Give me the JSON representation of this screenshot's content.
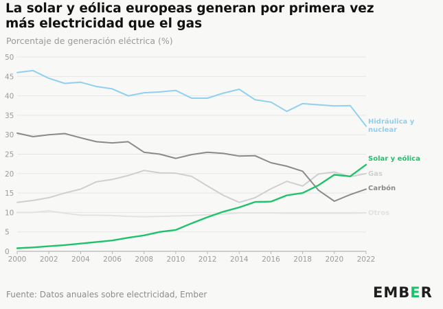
{
  "title": {
    "line1": "La solar y eólica europeas generan por primera vez",
    "line2": "más electricidad que el gas"
  },
  "subtitle": "Porcentaje de generación eléctrica (%)",
  "source": "Fuente: Datos anuales sobre electricidad, Ember",
  "logo": {
    "text": "EMBER",
    "letters": [
      "E",
      "M",
      "B",
      "E",
      "R"
    ],
    "accent_color": "#1ec26a"
  },
  "chart_data": {
    "type": "line",
    "title": "La solar y eólica europeas generan por primera vez más electricidad que el gas",
    "ylabel": "Porcentaje de generación eléctrica (%)",
    "xlabel": "",
    "x": [
      2000,
      2001,
      2002,
      2003,
      2004,
      2005,
      2006,
      2007,
      2008,
      2009,
      2010,
      2011,
      2012,
      2013,
      2014,
      2015,
      2016,
      2017,
      2018,
      2019,
      2020,
      2021,
      2022
    ],
    "xlim": [
      2000,
      2022
    ],
    "ylim": [
      0,
      50
    ],
    "yticks": [
      0,
      5,
      10,
      15,
      20,
      25,
      30,
      35,
      40,
      45,
      50
    ],
    "xticks": [
      2000,
      2002,
      2004,
      2006,
      2008,
      2010,
      2012,
      2014,
      2016,
      2018,
      2020,
      2022
    ],
    "grid": true,
    "series": [
      {
        "name": "Hidráulica y nuclear",
        "label_lines": [
          "Hidráulica y",
          "nuclear"
        ],
        "color": "#8fd0f0",
        "values": [
          46.0,
          46.5,
          44.5,
          43.2,
          43.5,
          42.4,
          41.8,
          40.0,
          40.8,
          41.0,
          41.4,
          39.4,
          39.4,
          40.7,
          41.7,
          39.0,
          38.4,
          36.0,
          38.0,
          37.7,
          37.4,
          37.5,
          32.2
        ]
      },
      {
        "name": "Solar y eólica",
        "label_lines": [
          "Solar y eólica"
        ],
        "color": "#1ec26a",
        "values": [
          0.8,
          1.0,
          1.3,
          1.6,
          2.0,
          2.4,
          2.8,
          3.5,
          4.1,
          5.0,
          5.5,
          7.2,
          8.8,
          10.2,
          11.3,
          12.7,
          12.8,
          14.4,
          15.0,
          17.0,
          19.7,
          19.3,
          22.3
        ]
      },
      {
        "name": "Gas",
        "label_lines": [
          "Gas"
        ],
        "color": "#cfcfcf",
        "values": [
          12.6,
          13.1,
          13.8,
          15.0,
          16.0,
          17.9,
          18.5,
          19.5,
          20.8,
          20.2,
          20.1,
          19.3,
          16.8,
          14.4,
          12.6,
          13.8,
          16.1,
          18.0,
          16.8,
          19.9,
          20.4,
          19.2,
          20.0
        ]
      },
      {
        "name": "Carbón",
        "label_lines": [
          "Carbón"
        ],
        "color": "#8a8a8a",
        "values": [
          30.4,
          29.5,
          30.0,
          30.3,
          29.2,
          28.2,
          27.9,
          28.2,
          25.5,
          25.0,
          23.9,
          24.9,
          25.5,
          25.2,
          24.5,
          24.6,
          22.8,
          21.9,
          20.6,
          15.7,
          12.9,
          14.6,
          16.0
        ]
      },
      {
        "name": "Otros",
        "label_lines": [
          "Otros"
        ],
        "color": "#e2e2e2",
        "values": [
          10.0,
          10.0,
          10.4,
          9.8,
          9.3,
          9.3,
          9.2,
          9.0,
          8.9,
          9.0,
          9.1,
          9.2,
          9.4,
          9.6,
          9.9,
          9.9,
          9.9,
          9.8,
          9.8,
          9.8,
          9.8,
          9.8,
          9.9
        ]
      }
    ]
  }
}
